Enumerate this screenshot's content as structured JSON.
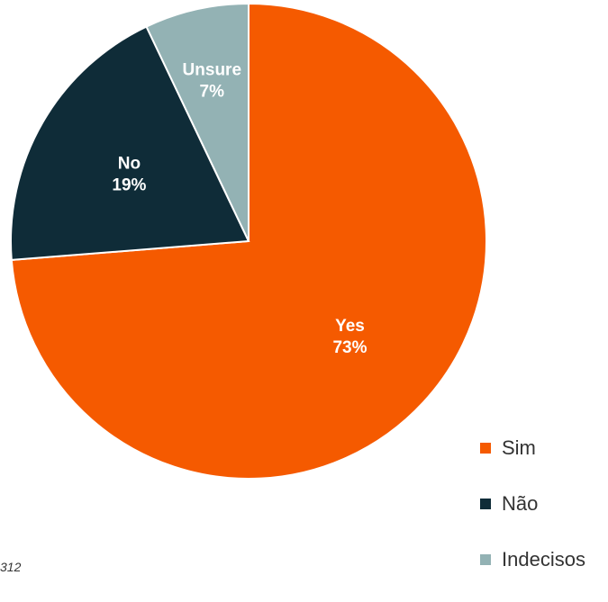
{
  "chart_data": {
    "type": "pie",
    "slices": [
      {
        "label": "Yes",
        "value": 73,
        "pct_text": "73%",
        "legend": "Sim",
        "color": "#F55A00"
      },
      {
        "label": "No",
        "value": 19,
        "pct_text": "19%",
        "legend": "Não",
        "color": "#0F2C38"
      },
      {
        "label": "Unsure",
        "value": 7,
        "pct_text": "7%",
        "legend": "Indecisos",
        "color": "#93B2B4"
      }
    ]
  },
  "footnote": "312"
}
